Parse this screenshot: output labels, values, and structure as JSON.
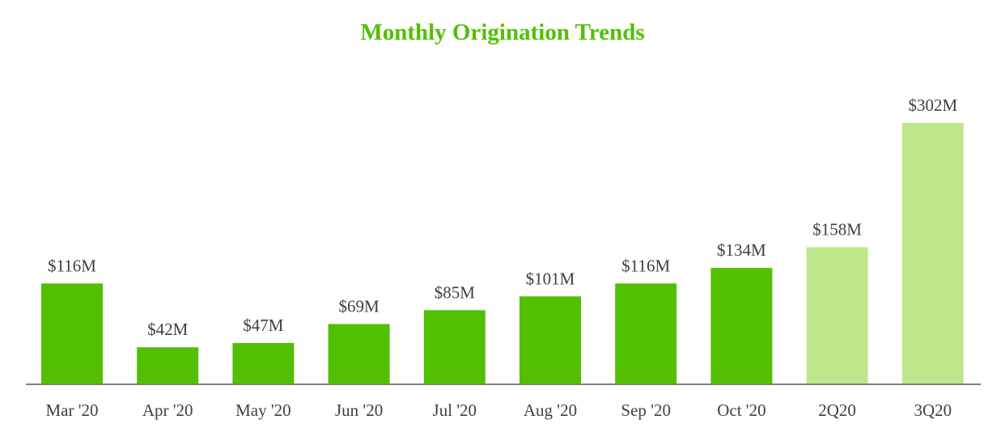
{
  "chart_data": {
    "type": "bar",
    "title": "Monthly Origination Trends",
    "categories": [
      "Mar '20",
      "Apr '20",
      "May '20",
      "Jun '20",
      "Jul '20",
      "Aug '20",
      "Sep '20",
      "Oct '20",
      "2Q20",
      "3Q20"
    ],
    "values": [
      116,
      42,
      47,
      69,
      85,
      101,
      116,
      134,
      158,
      302
    ],
    "value_labels": [
      "$116M",
      "$42M",
      "$47M",
      "$69M",
      "$85M",
      "$101M",
      "$116M",
      "$134M",
      "$158M",
      "$302M"
    ],
    "unit": "$M",
    "ylim": [
      0,
      302
    ],
    "grid": false,
    "colors": {
      "monthly": "#52c000",
      "quarterly": "#bfe68a",
      "title": "#52c000",
      "axis": "#808080",
      "text": "#404040"
    },
    "bar_color_groups": [
      "monthly",
      "monthly",
      "monthly",
      "monthly",
      "monthly",
      "monthly",
      "monthly",
      "monthly",
      "quarterly",
      "quarterly"
    ]
  }
}
